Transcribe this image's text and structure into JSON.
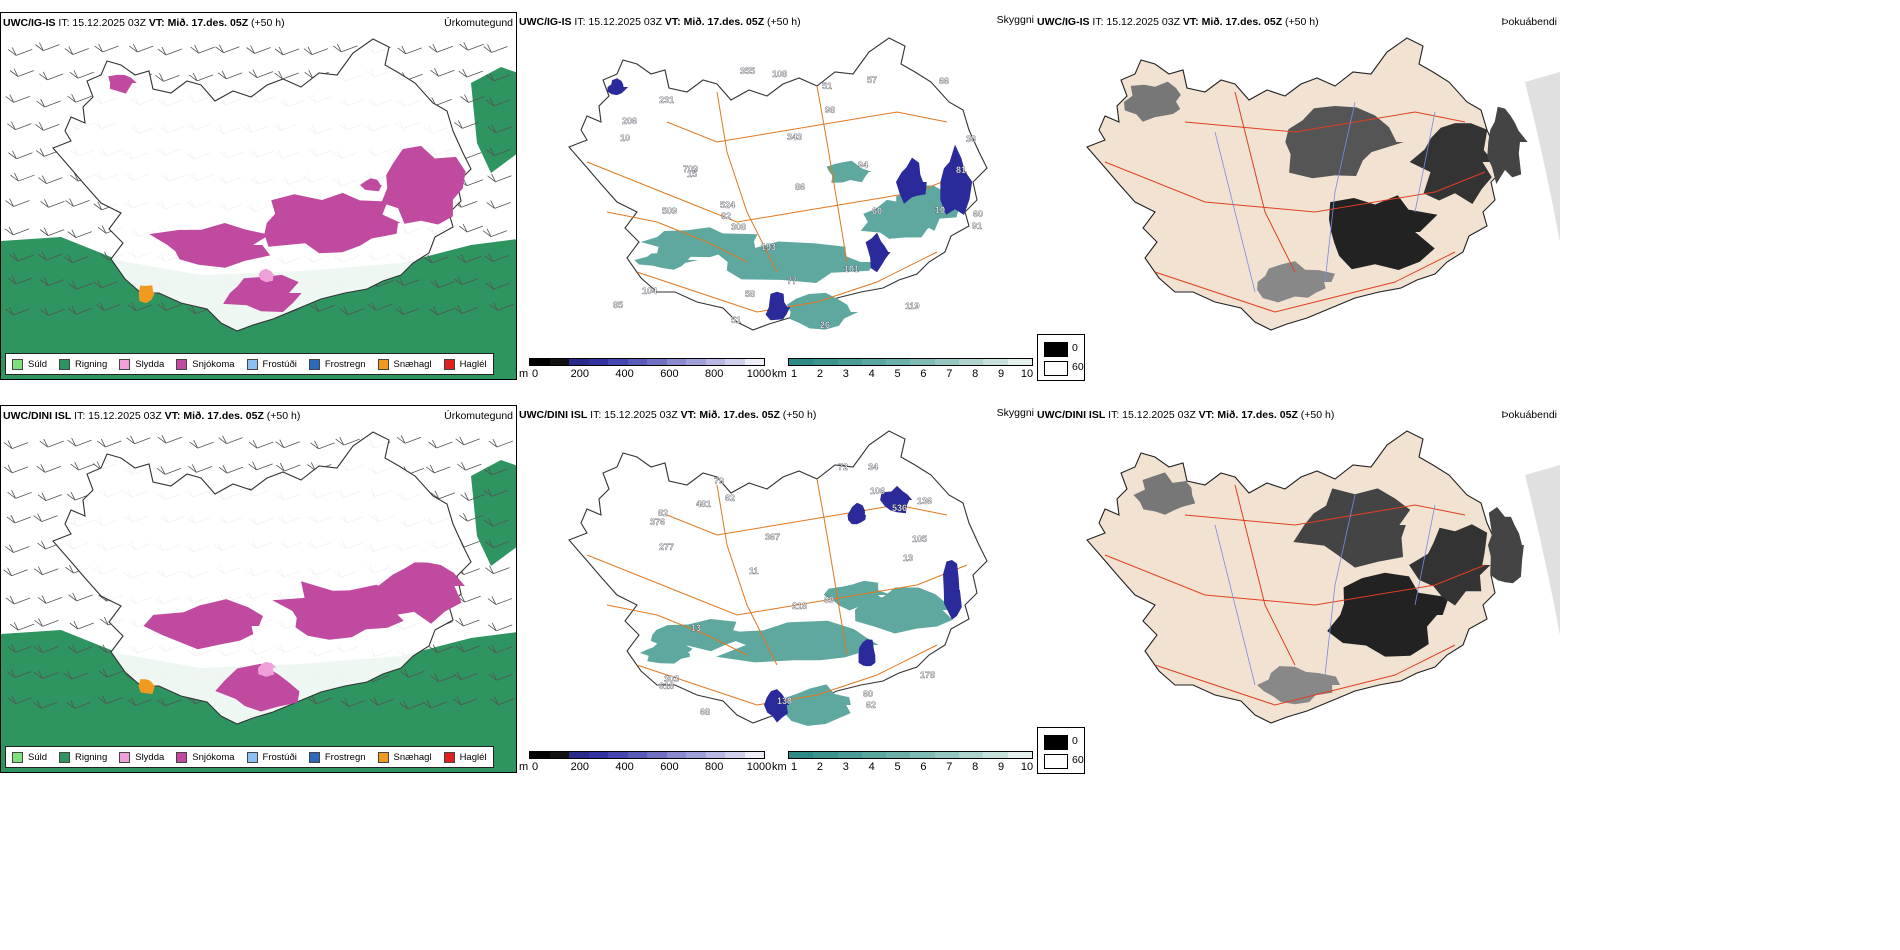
{
  "rows": [
    {
      "model": "UWC/IG-IS",
      "issue": " IT: 15.12.2025 03Z ",
      "valid_label": "VT:",
      "valid_value": " Mið. 17.des. 05Z",
      "lead": " (+50 h)",
      "titles": [
        "Úrkomutegund",
        "Skyggni",
        "Þokuábendi"
      ],
      "peaks": [
        "193",
        "82",
        "10",
        "343",
        "509",
        "524",
        "709",
        "104",
        "36",
        "81",
        "77",
        "231",
        "91",
        "101",
        "15",
        "94",
        "66",
        "86",
        "355",
        "26",
        "308",
        "58",
        "85",
        "206",
        "10",
        "98",
        "60",
        "60",
        "51",
        "108",
        "57",
        "51",
        "119"
      ]
    },
    {
      "model": "UWC/DINI ISL",
      "issue": " IT: 15.12.2025 03Z ",
      "valid_label": "VT:",
      "valid_value": " Mið. 17.des. 05Z",
      "lead": " (+50 h)",
      "titles": [
        "Úrkomutegund",
        "Skyggni",
        "Þokuábendi"
      ],
      "peaks": [
        "79",
        "105",
        "62",
        "376",
        "136",
        "618",
        "178",
        "218",
        "106",
        "536",
        "303",
        "34",
        "13",
        "277",
        "138",
        "69",
        "13",
        "62",
        "82",
        "367",
        "72",
        "68",
        "11",
        "60",
        "481"
      ]
    }
  ],
  "precip_legend": [
    {
      "label": "Súld",
      "color": "#7fe07f"
    },
    {
      "label": "Rigning",
      "color": "#2e9460"
    },
    {
      "label": "Slydda",
      "color": "#f0a0d8"
    },
    {
      "label": "Snjókoma",
      "color": "#c04aa0"
    },
    {
      "label": "Frostúði",
      "color": "#8cc0f0"
    },
    {
      "label": "Frostregn",
      "color": "#2a6ab8"
    },
    {
      "label": "Snæhagl",
      "color": "#f09a20"
    },
    {
      "label": "Haglél",
      "color": "#e02020"
    }
  ],
  "ceiling_bar": {
    "unit": "m",
    "ticks": [
      "0",
      "200",
      "400",
      "600",
      "800",
      "1000"
    ]
  },
  "visibility_bar": {
    "unit": "km",
    "ticks": [
      "1",
      "2",
      "3",
      "4",
      "5",
      "6",
      "7",
      "8",
      "9",
      "10"
    ]
  },
  "fog_key": {
    "low": "0",
    "high": "60"
  },
  "colors": {
    "rain": "#2e9460",
    "snow": "#c04aa0",
    "teal": "#5fa8a0",
    "blue": "#2a2a9a",
    "road": "#e07820",
    "land": "#f2e2d2"
  }
}
